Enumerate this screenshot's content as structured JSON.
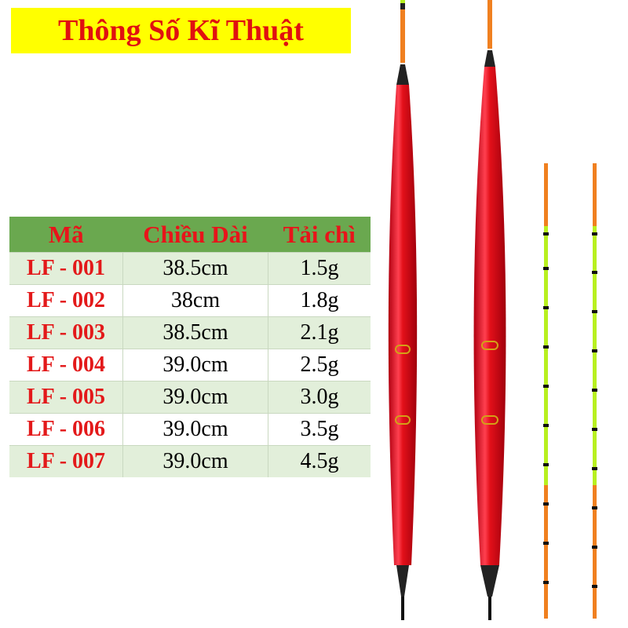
{
  "title": "Thông Số Kĩ Thuật",
  "table": {
    "headers": [
      "Mã",
      "Chiều Dài",
      "Tải chì"
    ],
    "rows": [
      [
        "LF - 001",
        "38.5cm",
        "1.5g"
      ],
      [
        "LF - 002",
        "38cm",
        "1.8g"
      ],
      [
        "LF - 003",
        "38.5cm",
        "2.1g"
      ],
      [
        "LF - 004",
        "39.0cm",
        "2.5g"
      ],
      [
        "LF - 005",
        "39.0cm",
        "3.0g"
      ],
      [
        "LF - 006",
        "39.0cm",
        "3.5g"
      ],
      [
        "LF - 007",
        "39.0cm",
        "4.5g"
      ]
    ]
  },
  "colors": {
    "title_bg": "#ffff00",
    "title_text": "#e01010",
    "header_bg": "#6aa84f",
    "float_body": "#e3101a",
    "tip_orange": "#f08020",
    "tip_green": "#b8f020"
  }
}
